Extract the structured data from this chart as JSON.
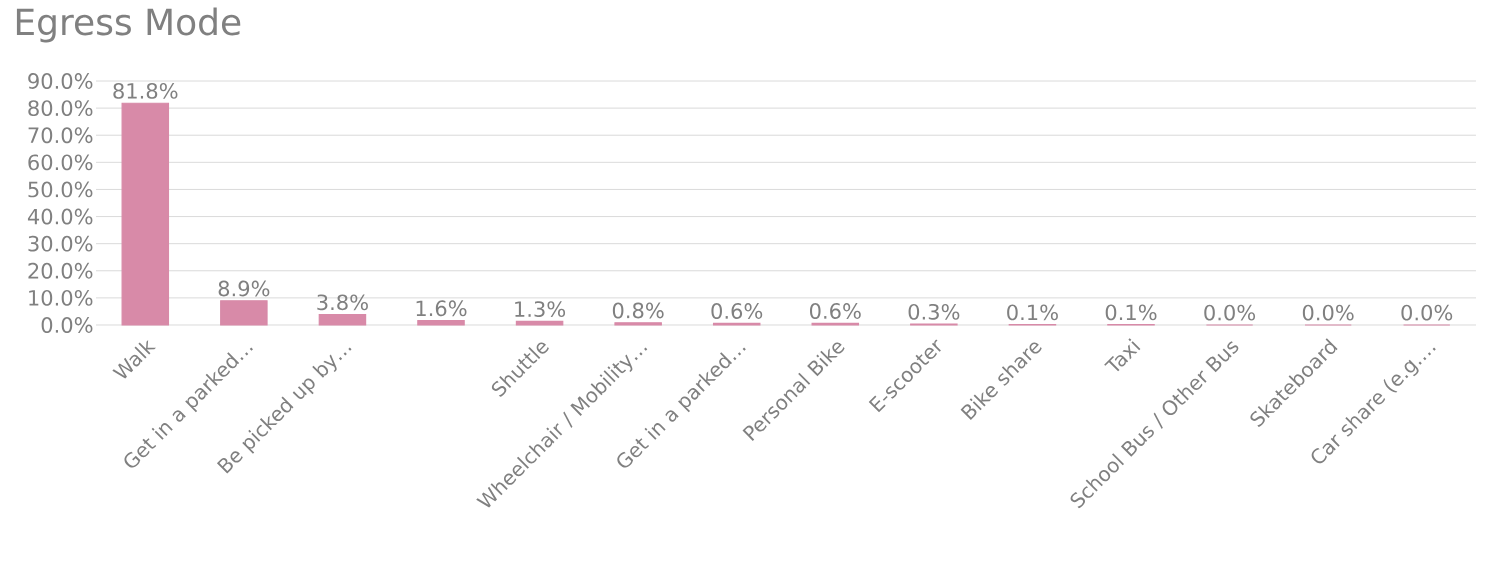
{
  "chart_data": {
    "type": "bar",
    "title": "Egress Mode",
    "categories": [
      "Walk",
      "Get in a parked…",
      "Be picked up by…",
      null,
      "Shuttle",
      "Wheelchair / Mobility…",
      "Get in a parked…",
      "Personal Bike",
      "E-scooter",
      "Bike share",
      "Taxi",
      "School Bus / Other Bus",
      "Skateboard",
      "Car share (e.g.…"
    ],
    "values": [
      81.8,
      8.9,
      3.8,
      1.6,
      1.3,
      0.8,
      0.6,
      0.6,
      0.3,
      0.1,
      0.1,
      0.0,
      0.0,
      0.0
    ],
    "value_labels": [
      "81.8%",
      "8.9%",
      "3.8%",
      "1.6%",
      "1.3%",
      "0.8%",
      "0.6%",
      "0.6%",
      "0.3%",
      "0.1%",
      "0.1%",
      "0.0%",
      "0.0%",
      "0.0%"
    ],
    "color": "#d88aa8",
    "ylim": [
      0,
      90
    ],
    "yticks": [
      {
        "value": 0,
        "label": "0.0%"
      },
      {
        "value": 10,
        "label": "10.0%"
      },
      {
        "value": 20,
        "label": "20.0%"
      },
      {
        "value": 30,
        "label": "30.0%"
      },
      {
        "value": 40,
        "label": "40.0%"
      },
      {
        "value": 50,
        "label": "50.0%"
      },
      {
        "value": 60,
        "label": "60.0%"
      },
      {
        "value": 70,
        "label": "70.0%"
      },
      {
        "value": 80,
        "label": "80.0%"
      },
      {
        "value": 90,
        "label": "90.0%"
      }
    ],
    "grid": "y"
  }
}
